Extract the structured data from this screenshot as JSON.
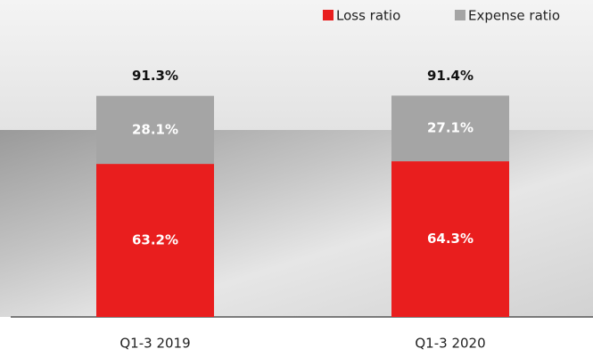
{
  "chart_data": {
    "type": "stacked_bar",
    "categories": [
      "Q1-3 2019",
      "Q1-3 2020"
    ],
    "series": [
      {
        "name": "Loss ratio",
        "color": "#e91e1e",
        "values": [
          63.2,
          64.3
        ],
        "value_labels": [
          "63.2%",
          "64.3%"
        ]
      },
      {
        "name": "Expense ratio",
        "color": "#a5a5a5",
        "values": [
          28.1,
          27.1
        ],
        "value_labels": [
          "28.1%",
          "27.1%"
        ]
      }
    ],
    "totals": [
      91.3,
      91.4
    ],
    "total_labels": [
      "91.3%",
      "91.4%"
    ],
    "ylim": [
      0,
      100
    ],
    "legend": "top-right"
  }
}
